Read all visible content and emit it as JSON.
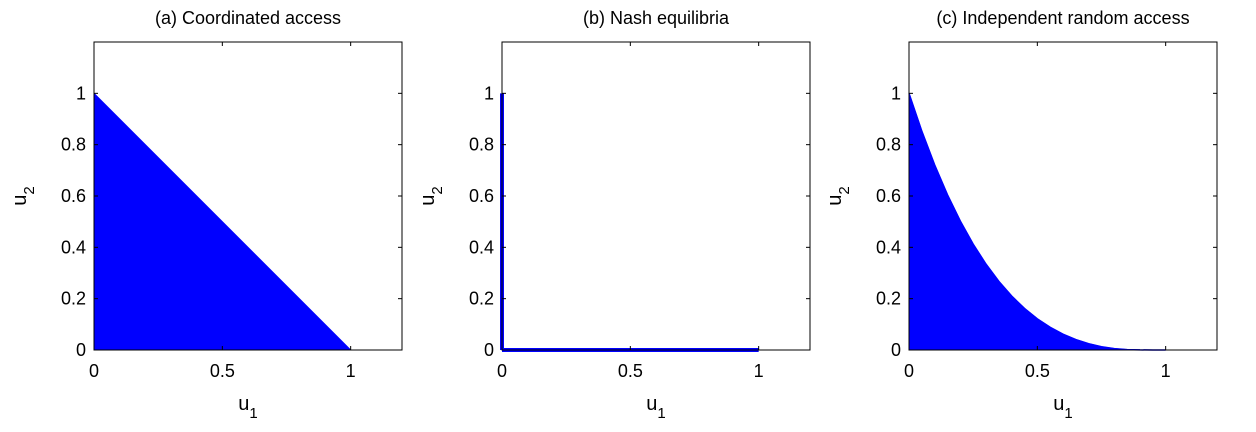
{
  "chart_data": [
    {
      "type": "area",
      "title": "(a) Coordinated access",
      "xlabel": "u",
      "xlabel_sub": "1",
      "ylabel": "u",
      "ylabel_sub": "2",
      "xlim": [
        0,
        1.2
      ],
      "ylim": [
        0,
        1.2
      ],
      "xticks": [
        0,
        0.5,
        1
      ],
      "xtick_labels": [
        "0",
        "0.5",
        "1"
      ],
      "yticks": [
        0,
        0.2,
        0.4,
        0.6,
        0.8,
        1
      ],
      "ytick_labels": [
        "0",
        "0.2",
        "0.4",
        "0.6",
        "0.8",
        "1"
      ],
      "grid": false,
      "color": "#0000ff",
      "region": {
        "x": [
          0,
          0,
          1
        ],
        "y": [
          0,
          1,
          0
        ]
      }
    },
    {
      "type": "line",
      "title": "(b) Nash equilibria",
      "xlabel": "u",
      "xlabel_sub": "1",
      "ylabel": "u",
      "ylabel_sub": "2",
      "xlim": [
        0,
        1.2
      ],
      "ylim": [
        0,
        1.2
      ],
      "xticks": [
        0,
        0.5,
        1
      ],
      "xtick_labels": [
        "0",
        "0.5",
        "1"
      ],
      "yticks": [
        0,
        0.2,
        0.4,
        0.6,
        0.8,
        1
      ],
      "ytick_labels": [
        "0",
        "0.2",
        "0.4",
        "0.6",
        "0.8",
        "1"
      ],
      "grid": false,
      "color": "#0000ff",
      "series": [
        {
          "x": [
            0,
            0
          ],
          "y": [
            0,
            1
          ]
        },
        {
          "x": [
            0,
            1
          ],
          "y": [
            0,
            0
          ]
        }
      ]
    },
    {
      "type": "area",
      "title": "(c) Independent random access",
      "xlabel": "u",
      "xlabel_sub": "1",
      "ylabel": "u",
      "ylabel_sub": "2",
      "xlim": [
        0,
        1.2
      ],
      "ylim": [
        0,
        1.2
      ],
      "xticks": [
        0,
        0.5,
        1
      ],
      "xtick_labels": [
        "0",
        "0.5",
        "1"
      ],
      "yticks": [
        0,
        0.2,
        0.4,
        0.6,
        0.8,
        1
      ],
      "ytick_labels": [
        "0",
        "0.2",
        "0.4",
        "0.6",
        "0.8",
        "1"
      ],
      "grid": false,
      "color": "#0000ff",
      "boundary": {
        "x": [
          0,
          0.05,
          0.1,
          0.15,
          0.2,
          0.25,
          0.3,
          0.35,
          0.4,
          0.45,
          0.5,
          0.55,
          0.6,
          0.65,
          0.7,
          0.75,
          0.8,
          0.85,
          0.9,
          0.95,
          1
        ],
        "y": [
          1,
          0.8525,
          0.7211,
          0.6047,
          0.5022,
          0.4125,
          0.3346,
          0.2675,
          0.2102,
          0.1618,
          0.1215,
          0.0884,
          0.0617,
          0.0406,
          0.0245,
          0.0127,
          0.0055,
          0.0017,
          0.0003,
          0.0001,
          0
        ]
      }
    }
  ]
}
